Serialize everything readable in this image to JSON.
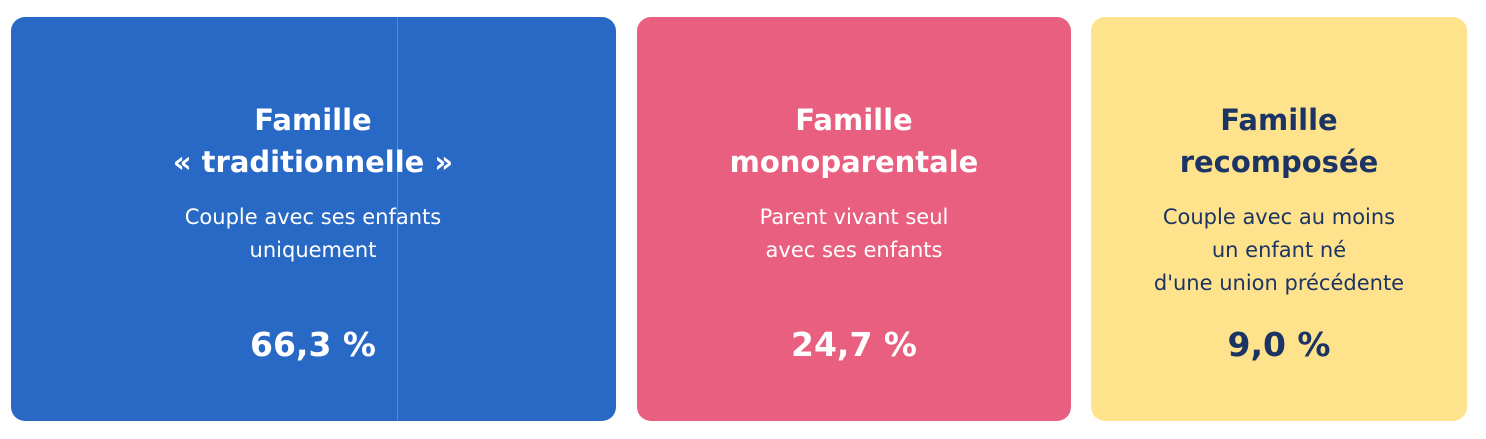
{
  "cards": [
    {
      "title_lines": [
        "Famille",
        "« traditionnelle »"
      ],
      "description_lines": [
        "Couple avec ses enfants",
        "uniquement"
      ],
      "value": "66,3 %",
      "color": "#2969c6",
      "text_color": "#ffffff"
    },
    {
      "title_lines": [
        "Famille",
        "monoparentale"
      ],
      "description_lines": [
        "Parent vivant seul",
        "avec ses enfants"
      ],
      "value": "24,7 %",
      "color": "#e95f7f",
      "text_color": "#ffffff"
    },
    {
      "title_lines": [
        "Famille",
        "recomposée"
      ],
      "description_lines": [
        "Couple avec au moins",
        "un enfant né",
        "d'une union précédente"
      ],
      "value": "9,0 %",
      "color": "#ffe28c",
      "text_color": "#1c3464"
    }
  ]
}
